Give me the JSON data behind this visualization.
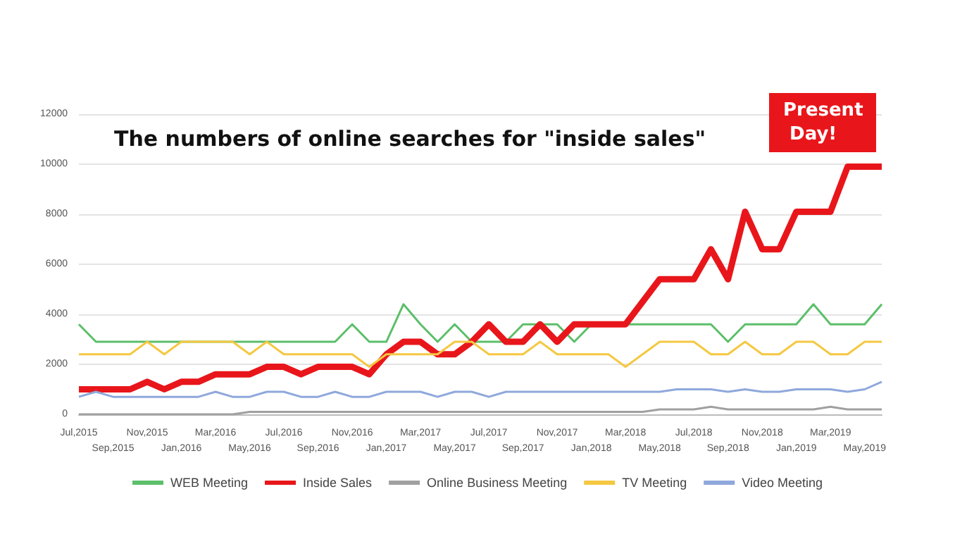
{
  "chart_data": {
    "type": "line",
    "title": "The numbers of online searches for \"inside sales\"",
    "categories": [
      "Jul,2015",
      null,
      "Sep,2015",
      null,
      "Nov,2015",
      null,
      "Jan,2016",
      null,
      "Mar,2016",
      null,
      "May,2016",
      null,
      "Jul,2016",
      null,
      "Sep,2016",
      null,
      "Nov,2016",
      null,
      "Jan,2017",
      null,
      "Mar,2017",
      null,
      "May,2017",
      null,
      "Jul,2017",
      null,
      "Sep,2017",
      null,
      "Nov,2017",
      null,
      "Jan,2018",
      null,
      "Mar,2018",
      null,
      "May,2018",
      null,
      "Jul,2018",
      null,
      "Sep,2018",
      null,
      "Nov,2018",
      null,
      "Jan,2019",
      null,
      "Mar,2019",
      null,
      "May,2019",
      null
    ],
    "series": [
      {
        "name": "WEB Meeting",
        "color": "#5cbf6a",
        "values": [
          3600,
          2900,
          2900,
          2900,
          2900,
          2900,
          2900,
          2900,
          2900,
          2900,
          2900,
          2900,
          2900,
          2900,
          2900,
          2900,
          3600,
          2900,
          2900,
          4400,
          3600,
          2900,
          3600,
          2900,
          2900,
          2900,
          3600,
          3600,
          3600,
          2900,
          3600,
          3600,
          3600,
          3600,
          3600,
          3600,
          3600,
          3600,
          2900,
          3600,
          3600,
          3600,
          3600,
          4400,
          3600,
          3600,
          3600,
          4400
        ]
      },
      {
        "name": "Inside Sales",
        "color": "#e8161b",
        "values": [
          1000,
          1000,
          1000,
          1000,
          1300,
          1000,
          1300,
          1300,
          1600,
          1600,
          1600,
          1900,
          1900,
          1600,
          1900,
          1900,
          1900,
          1600,
          2400,
          2900,
          2900,
          2400,
          2400,
          2900,
          3600,
          2900,
          2900,
          3600,
          2900,
          3600,
          3600,
          3600,
          3600,
          4500,
          5400,
          5400,
          5400,
          6600,
          5400,
          8100,
          6600,
          6600,
          8100,
          8100,
          8100,
          9900,
          9900,
          9900
        ]
      },
      {
        "name": "Online Business Meeting",
        "color": "#a0a0a0",
        "values": [
          0,
          0,
          0,
          0,
          0,
          0,
          0,
          0,
          0,
          0,
          100,
          100,
          100,
          100,
          100,
          100,
          100,
          100,
          100,
          100,
          100,
          100,
          100,
          100,
          100,
          100,
          100,
          100,
          100,
          100,
          100,
          100,
          100,
          100,
          200,
          200,
          200,
          300,
          200,
          200,
          200,
          200,
          200,
          200,
          300,
          200,
          200,
          200
        ]
      },
      {
        "name": "TV Meeting",
        "color": "#f5c842",
        "values": [
          2400,
          2400,
          2400,
          2400,
          2900,
          2400,
          2900,
          2900,
          2900,
          2900,
          2400,
          2900,
          2400,
          2400,
          2400,
          2400,
          2400,
          1900,
          2400,
          2400,
          2400,
          2400,
          2900,
          2900,
          2400,
          2400,
          2400,
          2900,
          2400,
          2400,
          2400,
          2400,
          1900,
          2400,
          2900,
          2900,
          2900,
          2400,
          2400,
          2900,
          2400,
          2400,
          2900,
          2900,
          2400,
          2400,
          2900,
          2900
        ]
      },
      {
        "name": "Video Meeting",
        "color": "#8fa8dc",
        "values": [
          700,
          900,
          700,
          700,
          700,
          700,
          700,
          700,
          900,
          700,
          700,
          900,
          900,
          700,
          700,
          900,
          700,
          700,
          900,
          900,
          900,
          700,
          900,
          900,
          700,
          900,
          900,
          900,
          900,
          900,
          900,
          900,
          900,
          900,
          900,
          1000,
          1000,
          1000,
          900,
          1000,
          900,
          900,
          1000,
          1000,
          1000,
          900,
          1000,
          1300
        ]
      }
    ],
    "ylim": [
      0,
      12000
    ],
    "yticks": [
      0,
      2000,
      4000,
      6000,
      8000,
      10000,
      12000
    ],
    "grid": "y",
    "legend": "bottom",
    "marker": "none",
    "annotations": [
      "Present Day!"
    ]
  }
}
